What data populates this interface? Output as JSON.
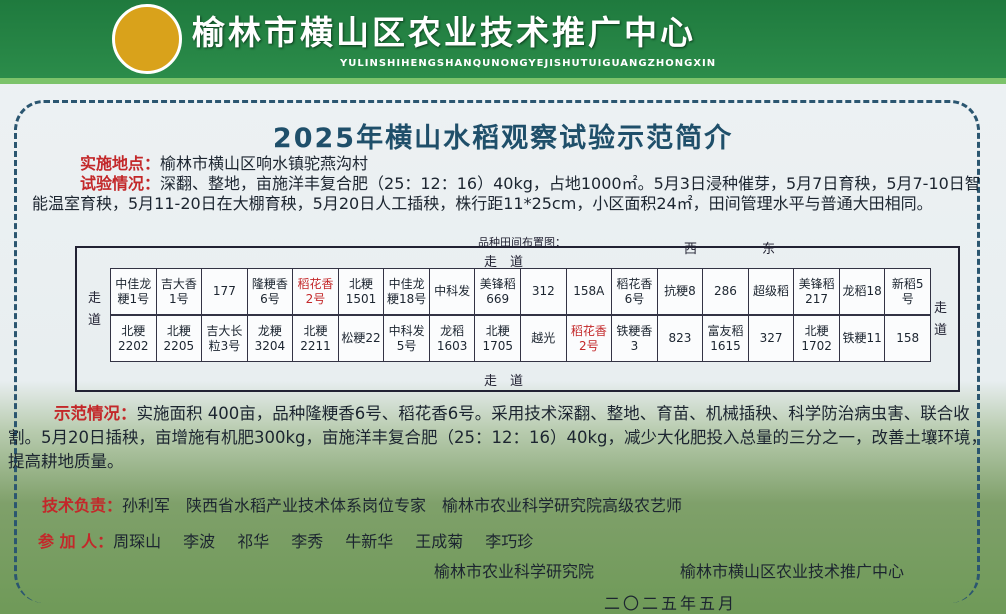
{
  "header": {
    "title": "榆林市横山区农业技术推广中心",
    "pinyin": "YULINSHIHENGSHANQUNONGYEJISHUTUIGUANGZHONGXIN"
  },
  "title": "2025年横山水稻观察试验示范简介",
  "location": {
    "label": "实施地点：",
    "text": "榆林市横山区响水镇驼燕沟村"
  },
  "trial": {
    "label": "试验情况：",
    "text": "深翻、整地，亩施洋丰复合肥（25：12：16）40kg，占地1000㎡。5月3日浸种催芽，5月7日育秧，5月7-10日智能温室育秧，5月11-20日在大棚育秧，5月20日人工插秧，株行距11*25cm，小区面积24㎡，田间管理水平与普通大田相同。"
  },
  "layout": {
    "caption": "品种田间布置图：",
    "west": "西",
    "east": "东",
    "walkway": "走　道",
    "walkway_side": "走道",
    "rows": [
      [
        "中佳龙粳1号",
        "吉大香1号",
        "177",
        "隆粳香6号",
        "稻花香2号",
        "北粳1501",
        "中佳龙粳18号",
        "中科发",
        "美锋稻669",
        "312",
        "158A",
        "稻花香6号",
        "抗粳8",
        "286",
        "超级稻",
        "美锋稻217",
        "龙稻18",
        "新稻5号"
      ],
      [
        "北粳2202",
        "北粳2205",
        "吉大长粒3号",
        "龙粳3204",
        "北粳2211",
        "松粳22",
        "中科发5号",
        "龙稻1603",
        "北粳1705",
        "越光",
        "稻花香2号",
        "铁粳香3",
        "823",
        "富友稻1615",
        "327",
        "北粳1702",
        "铁粳11",
        "158"
      ]
    ],
    "highlight_color": "#c3282a",
    "highlighted": [
      [
        0,
        4
      ],
      [
        1,
        10
      ]
    ]
  },
  "demo": {
    "label": "示范情况：",
    "text": "实施面积 400亩，品种隆粳香6号、稻花香6号。采用技术深翻、整地、育苗、机械插秧、科学防治病虫害、联合收割。5月20日插秧，亩增施有机肥300kg，亩施洋丰复合肥（25：12：16）40kg，减少大化肥投入总量的三分之一，改善土壤环境，提高耕地质量。"
  },
  "tech": {
    "label": "技术负责：",
    "text": "孙利军　陕西省水稻产业技术体系岗位专家　榆林市农业科学研究院高级农艺师"
  },
  "participants": {
    "label": "参 加 人：",
    "names": [
      "周琛山",
      "李波",
      "祁华",
      "李秀",
      "牛新华",
      "王成菊",
      "李巧珍"
    ]
  },
  "orgs": [
    "榆林市农业科学研究院",
    "榆林市横山区农业技术推广中心"
  ],
  "date": "二〇二五年五月"
}
